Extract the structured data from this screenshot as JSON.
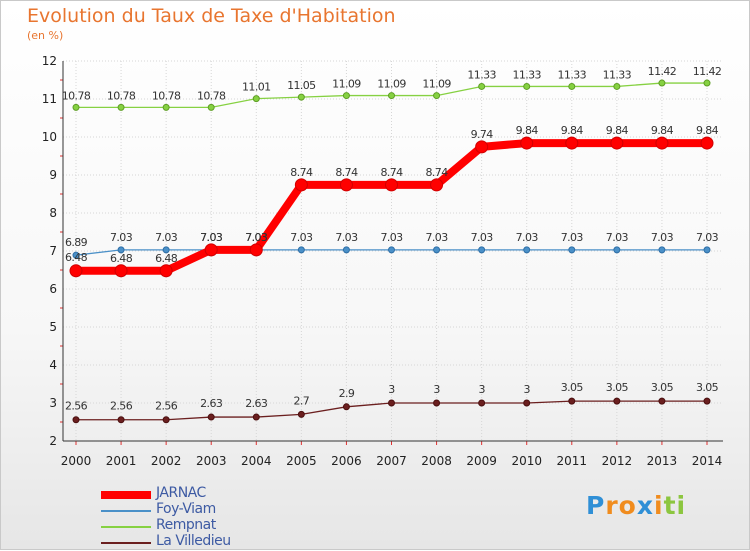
{
  "chart_data": {
    "type": "line",
    "title": "Evolution du Taux de Taxe d'Habitation",
    "subtitle": "(en %)",
    "x": [
      "2000",
      "2001",
      "2002",
      "2003",
      "2004",
      "2005",
      "2006",
      "2007",
      "2008",
      "2009",
      "2010",
      "2011",
      "2012",
      "2013",
      "2014"
    ],
    "yticks": [
      2,
      3,
      4,
      5,
      6,
      7,
      8,
      9,
      10,
      11,
      12
    ],
    "ylim": [
      2,
      12
    ],
    "grid": true,
    "legend_position": "bottom-left",
    "series": [
      {
        "name": "JARNAC",
        "color": "#ff0000",
        "values": [
          6.48,
          6.48,
          6.48,
          7.03,
          7.03,
          8.74,
          8.74,
          8.74,
          8.74,
          9.74,
          9.84,
          9.84,
          9.84,
          9.84,
          9.84
        ],
        "labels": [
          "6.48",
          "6.48",
          "6.48",
          "7.03",
          "7.03",
          "8.74",
          "8.74",
          "8.74",
          "8.74",
          "9.74",
          "9.84",
          "9.84",
          "9.84",
          "9.84",
          "9.84"
        ]
      },
      {
        "name": "Foy-Viam",
        "color": "#4a90c8",
        "values": [
          6.89,
          7.03,
          7.03,
          7.03,
          7.03,
          7.03,
          7.03,
          7.03,
          7.03,
          7.03,
          7.03,
          7.03,
          7.03,
          7.03,
          7.03
        ],
        "labels": [
          "6.89",
          "7.03",
          "7.03",
          "7.03",
          "7.03",
          "7.03",
          "7.03",
          "7.03",
          "7.03",
          "7.03",
          "7.03",
          "7.03",
          "7.03",
          "7.03",
          "7.03"
        ]
      },
      {
        "name": "Rempnat",
        "color": "#86d142",
        "values": [
          10.78,
          10.78,
          10.78,
          10.78,
          11.01,
          11.05,
          11.09,
          11.09,
          11.09,
          11.33,
          11.33,
          11.33,
          11.33,
          11.42,
          11.42
        ],
        "labels": [
          "10.78",
          "10.78",
          "10.78",
          "10.78",
          "11.01",
          "11.05",
          "11.09",
          "11.09",
          "11.09",
          "11.33",
          "11.33",
          "11.33",
          "11.33",
          "11.42",
          "11.42"
        ]
      },
      {
        "name": "La Villedieu",
        "color": "#6b1f1f",
        "values": [
          2.56,
          2.56,
          2.56,
          2.63,
          2.63,
          2.7,
          2.9,
          3,
          3,
          3,
          3,
          3.05,
          3.05,
          3.05,
          3.05
        ],
        "labels": [
          "2.56",
          "2.56",
          "2.56",
          "2.63",
          "2.63",
          "2.7",
          "2.9",
          "3",
          "3",
          "3",
          "3",
          "3.05",
          "3.05",
          "3.05",
          "3.05"
        ]
      }
    ]
  },
  "logo": {
    "letters": [
      "P",
      "r",
      "o",
      "x",
      "i",
      "t",
      "i"
    ],
    "colors": [
      "#2f8fd6",
      "#f08c1e",
      "#f08c1e",
      "#2f8fd6",
      "#f08c1e",
      "#8cc63f",
      "#8cc63f"
    ]
  }
}
